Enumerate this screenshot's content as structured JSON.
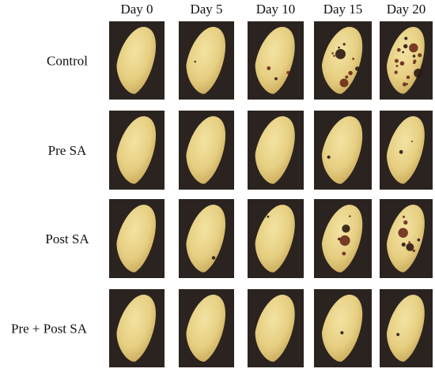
{
  "figure": {
    "columns": [
      "Day 0",
      "Day 5",
      "Day 10",
      "Day 15",
      "Day 20"
    ],
    "rows": [
      "Control",
      "Pre SA",
      "Post SA",
      "Pre + Post SA"
    ]
  }
}
